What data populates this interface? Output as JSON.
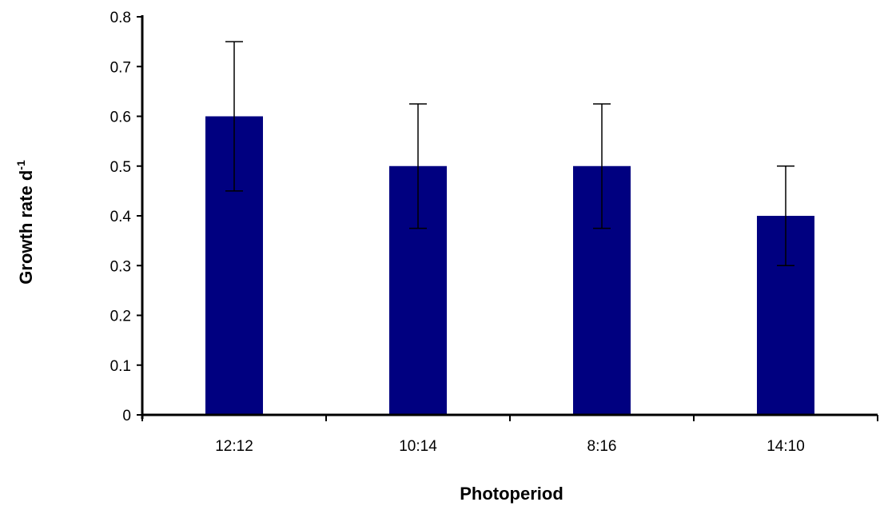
{
  "chart_data": {
    "type": "bar",
    "title": "",
    "xlabel": "Photoperiod",
    "ylabel": "Growth rate d",
    "ylabel_superscript": "-1",
    "categories": [
      "12:12",
      "10:14",
      "8:16",
      "14:10"
    ],
    "values": [
      0.6,
      0.5,
      0.5,
      0.4
    ],
    "error_bars": [
      {
        "lower": 0.45,
        "upper": 0.75
      },
      {
        "lower": 0.375,
        "upper": 0.625
      },
      {
        "lower": 0.375,
        "upper": 0.625
      },
      {
        "lower": 0.3,
        "upper": 0.5
      }
    ],
    "ylim": [
      0,
      0.8
    ],
    "yticks": [
      "0",
      "0.1",
      "0.2",
      "0.3",
      "0.4",
      "0.5",
      "0.6",
      "0.7",
      "0.8"
    ],
    "grid": false,
    "legend": "none",
    "bar_color": "#000080",
    "axis_color": "#000000"
  }
}
